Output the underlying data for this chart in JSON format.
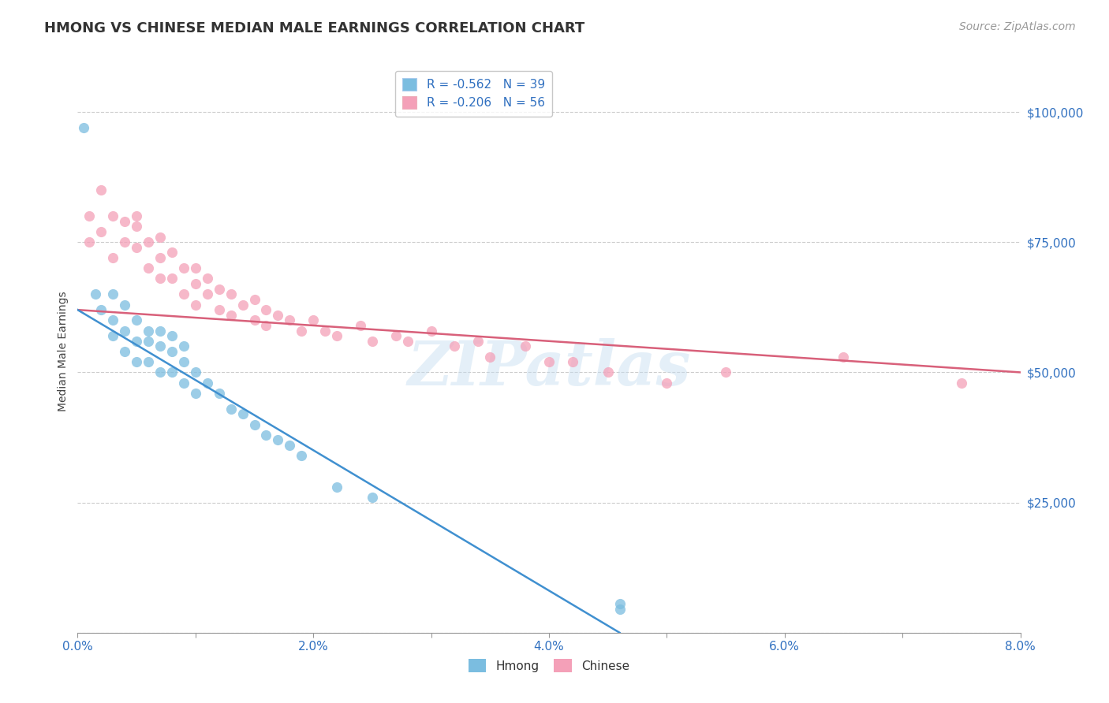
{
  "title": "HMONG VS CHINESE MEDIAN MALE EARNINGS CORRELATION CHART",
  "source": "Source: ZipAtlas.com",
  "ylabel": "Median Male Earnings",
  "x_min": 0.0,
  "x_max": 0.08,
  "y_min": 0,
  "y_max": 108000,
  "yticks": [
    0,
    25000,
    50000,
    75000,
    100000
  ],
  "ytick_labels": [
    "",
    "$25,000",
    "$50,000",
    "$75,000",
    "$100,000"
  ],
  "xticks": [
    0.0,
    0.01,
    0.02,
    0.03,
    0.04,
    0.05,
    0.06,
    0.07,
    0.08
  ],
  "xtick_labels": [
    "0.0%",
    "",
    "2.0%",
    "",
    "4.0%",
    "",
    "6.0%",
    "",
    "8.0%"
  ],
  "hmong_R": -0.562,
  "hmong_N": 39,
  "chinese_R": -0.206,
  "chinese_N": 56,
  "hmong_color": "#7bbde0",
  "chinese_color": "#f4a0b8",
  "hmong_line_color": "#4090d0",
  "chinese_line_color": "#d8607a",
  "watermark": "ZIPatlas",
  "legend_text_color": "#3070c0",
  "axis_color": "#3070c0",
  "grid_color": "#cccccc",
  "hmong_x": [
    0.0005,
    0.0015,
    0.002,
    0.003,
    0.003,
    0.003,
    0.004,
    0.004,
    0.004,
    0.005,
    0.005,
    0.005,
    0.006,
    0.006,
    0.006,
    0.007,
    0.007,
    0.007,
    0.008,
    0.008,
    0.008,
    0.009,
    0.009,
    0.009,
    0.01,
    0.01,
    0.011,
    0.012,
    0.013,
    0.014,
    0.015,
    0.016,
    0.017,
    0.018,
    0.019,
    0.022,
    0.025,
    0.046,
    0.046
  ],
  "hmong_y": [
    97000,
    65000,
    62000,
    65000,
    60000,
    57000,
    63000,
    58000,
    54000,
    60000,
    56000,
    52000,
    58000,
    56000,
    52000,
    58000,
    55000,
    50000,
    57000,
    54000,
    50000,
    55000,
    52000,
    48000,
    50000,
    46000,
    48000,
    46000,
    43000,
    42000,
    40000,
    38000,
    37000,
    36000,
    34000,
    28000,
    26000,
    5500,
    4500
  ],
  "chinese_x": [
    0.001,
    0.001,
    0.002,
    0.002,
    0.003,
    0.003,
    0.004,
    0.004,
    0.005,
    0.005,
    0.005,
    0.006,
    0.006,
    0.007,
    0.007,
    0.007,
    0.008,
    0.008,
    0.009,
    0.009,
    0.01,
    0.01,
    0.01,
    0.011,
    0.011,
    0.012,
    0.012,
    0.013,
    0.013,
    0.014,
    0.015,
    0.015,
    0.016,
    0.016,
    0.017,
    0.018,
    0.019,
    0.02,
    0.021,
    0.022,
    0.024,
    0.025,
    0.027,
    0.028,
    0.03,
    0.032,
    0.034,
    0.035,
    0.038,
    0.04,
    0.042,
    0.045,
    0.05,
    0.055,
    0.065,
    0.075
  ],
  "chinese_y": [
    80000,
    75000,
    85000,
    77000,
    80000,
    72000,
    79000,
    75000,
    80000,
    78000,
    74000,
    75000,
    70000,
    76000,
    72000,
    68000,
    73000,
    68000,
    70000,
    65000,
    70000,
    67000,
    63000,
    68000,
    65000,
    66000,
    62000,
    65000,
    61000,
    63000,
    64000,
    60000,
    62000,
    59000,
    61000,
    60000,
    58000,
    60000,
    58000,
    57000,
    59000,
    56000,
    57000,
    56000,
    58000,
    55000,
    56000,
    53000,
    55000,
    52000,
    52000,
    50000,
    48000,
    50000,
    53000,
    48000
  ],
  "hmong_line_x0": 0.0,
  "hmong_line_y0": 62000,
  "hmong_line_x1": 0.046,
  "hmong_line_y1": 0,
  "chinese_line_x0": 0.0,
  "chinese_line_y0": 62000,
  "chinese_line_x1": 0.08,
  "chinese_line_y1": 50000
}
